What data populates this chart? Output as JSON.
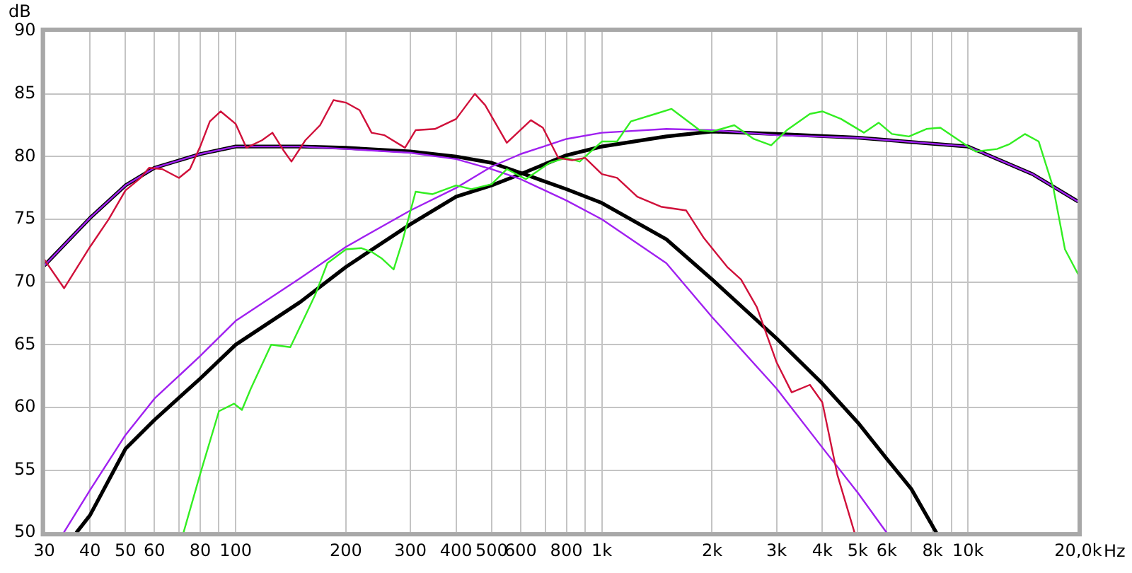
{
  "chart_data": {
    "type": "line",
    "xlabel": "Hz",
    "ylabel": "dB",
    "log": "x",
    "grid": true,
    "legend": false,
    "marker": "none",
    "line_style": "solid",
    "xlim": [
      30,
      20000
    ],
    "ylim": [
      50,
      90
    ],
    "xticks": [
      30,
      40,
      50,
      60,
      {
        "value": 70,
        "label": null
      },
      80,
      {
        "value": 90,
        "label": null
      },
      100,
      200,
      300,
      400,
      500,
      600,
      {
        "value": 700,
        "label": null
      },
      800,
      {
        "value": 900,
        "label": null
      },
      {
        "value": 1000,
        "label": "1k"
      },
      {
        "value": 2000,
        "label": "2k"
      },
      {
        "value": 3000,
        "label": "3k"
      },
      {
        "value": 4000,
        "label": "4k"
      },
      {
        "value": 5000,
        "label": "5k"
      },
      {
        "value": 6000,
        "label": "6k"
      },
      {
        "value": 7000,
        "label": null
      },
      {
        "value": 8000,
        "label": "8k"
      },
      {
        "value": 9000,
        "label": null
      },
      {
        "value": 10000,
        "label": "10k"
      },
      {
        "value": 20000,
        "label": "20,0k"
      }
    ],
    "yticks": [
      50,
      55,
      60,
      65,
      70,
      75,
      80,
      85,
      90
    ],
    "series": [
      {
        "color": "#d0103a",
        "x": [
          30,
          34,
          40,
          45,
          50,
          55,
          58,
          63,
          70,
          75,
          80,
          85,
          91,
          100,
          107,
          118,
          126,
          135,
          142,
          155,
          170,
          185,
          200,
          218,
          235,
          255,
          290,
          310,
          350,
          400,
          450,
          480,
          550,
          640,
          690,
          760,
          830,
          900,
          1000,
          1100,
          1250,
          1450,
          1700,
          1900,
          2200,
          2400,
          2650,
          3000,
          3300,
          3700,
          4000,
          4400,
          4900
        ],
        "values": [
          71.8,
          69.5,
          72.8,
          75,
          77.3,
          78.3,
          79.1,
          79,
          78.3,
          79,
          80.8,
          82.8,
          83.6,
          82.6,
          80.7,
          81.3,
          81.9,
          80.5,
          79.6,
          81.3,
          82.5,
          84.5,
          84.3,
          83.7,
          81.9,
          81.7,
          80.7,
          82.1,
          82.2,
          83,
          85,
          84.1,
          81.1,
          82.9,
          82.3,
          79.9,
          79.7,
          79.9,
          78.6,
          78.3,
          76.8,
          76,
          75.7,
          73.5,
          71.2,
          70.2,
          68,
          63.6,
          61.2,
          61.8,
          60.4,
          54.6,
          50
        ]
      },
      {
        "color": "#33ee22",
        "x": [
          72,
          80,
          90,
          99,
          104,
          110,
          125,
          141,
          156,
          165,
          178,
          200,
          220,
          235,
          250,
          270,
          285,
          310,
          345,
          400,
          440,
          500,
          550,
          620,
          720,
          800,
          870,
          1000,
          1100,
          1200,
          1400,
          1550,
          1850,
          2000,
          2300,
          2600,
          2900,
          3200,
          3700,
          4000,
          4500,
          5200,
          5700,
          6200,
          6900,
          7700,
          8400,
          10000,
          10500,
          12000,
          13000,
          14300,
          15600,
          17100,
          18400,
          20000
        ],
        "values": [
          50,
          54.7,
          59.7,
          60.3,
          59.8,
          61.5,
          65,
          64.8,
          67.5,
          69,
          71.5,
          72.6,
          72.7,
          72.4,
          71.9,
          71,
          73.2,
          77.2,
          77,
          77.7,
          77.4,
          77.8,
          79,
          78.2,
          79.5,
          79.9,
          79.6,
          81.2,
          81.2,
          82.8,
          83.4,
          83.8,
          82.1,
          82,
          82.5,
          81.4,
          80.9,
          82.1,
          83.4,
          83.6,
          83,
          81.9,
          82.7,
          81.8,
          81.6,
          82.2,
          82.3,
          80.8,
          80.4,
          80.6,
          81,
          81.8,
          81.2,
          77.5,
          72.6,
          70.6
        ]
      },
      {
        "color": "#000000",
        "x": [
          30,
          40,
          50,
          60,
          80,
          100,
          150,
          200,
          300,
          400,
          500,
          600,
          800,
          1000,
          1500,
          2000,
          3000,
          4000,
          5000,
          6000,
          7000,
          8200
        ],
        "values": [
          71.3,
          75.1,
          77.7,
          79.1,
          80.2,
          80.8,
          80.8,
          80.7,
          80.4,
          80,
          79.5,
          78.7,
          77.4,
          76.3,
          73.4,
          70.2,
          65.5,
          61.9,
          58.8,
          55.9,
          53.5,
          50
        ]
      },
      {
        "color": "#a020f0",
        "x": [
          30,
          40,
          50,
          60,
          80,
          100,
          150,
          200,
          300,
          400,
          500,
          600,
          800,
          1000,
          1500,
          2000,
          3000,
          4000,
          5000,
          6000
        ],
        "values": [
          71.3,
          75.1,
          77.7,
          79.1,
          80.2,
          80.8,
          80.8,
          80.6,
          80.3,
          79.8,
          79,
          78.2,
          76.5,
          75,
          71.5,
          67.2,
          61.5,
          56.8,
          53.2,
          50
        ]
      },
      {
        "color": "#000000",
        "x": [
          36.7,
          40,
          50,
          60,
          80,
          100,
          150,
          200,
          300,
          400,
          500,
          600,
          800,
          1000,
          1500,
          2000,
          3000,
          5000,
          10000,
          15000,
          20000
        ],
        "values": [
          50,
          51.4,
          56.7,
          59,
          62.3,
          65,
          68.4,
          71.2,
          74.6,
          76.8,
          77.7,
          78.6,
          80.1,
          80.8,
          81.6,
          82,
          81.8,
          81.5,
          80.8,
          78.6,
          76.4
        ]
      },
      {
        "color": "#a020f0",
        "x": [
          33.9,
          40,
          50,
          60,
          80,
          100,
          150,
          200,
          300,
          400,
          500,
          600,
          800,
          1000,
          1500,
          2000,
          3000,
          5000,
          10000,
          15000,
          20000
        ],
        "values": [
          50,
          53.4,
          57.8,
          60.7,
          64.1,
          66.9,
          70.3,
          72.8,
          75.7,
          77.5,
          79.2,
          80.2,
          81.4,
          81.9,
          82.2,
          82.1,
          81.7,
          81.5,
          80.8,
          78.6,
          76.4
        ]
      }
    ]
  }
}
